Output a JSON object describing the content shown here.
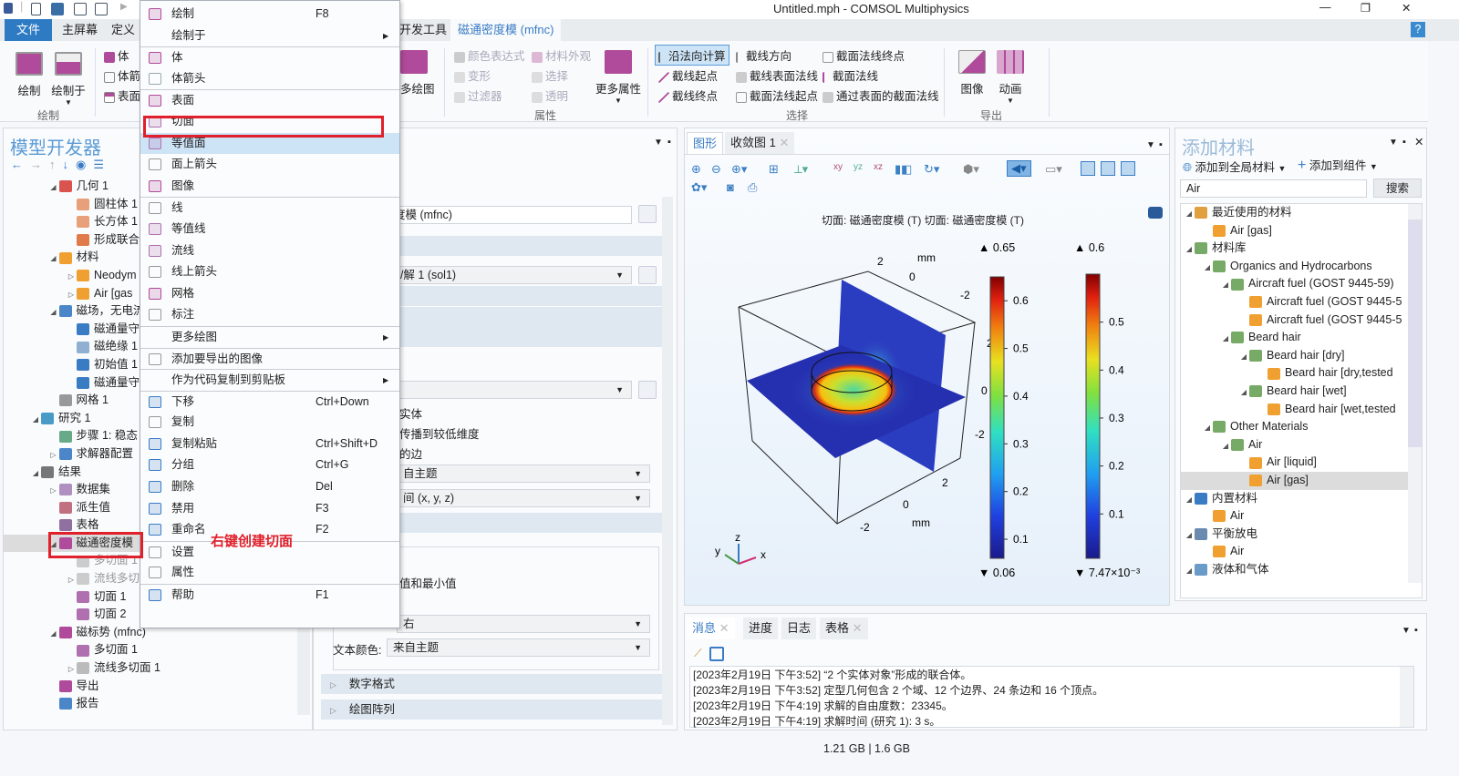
{
  "window": {
    "title": "Untitled.mph - COMSOL Multiphysics",
    "minimize": "—",
    "maximize": "❐",
    "close": "✕"
  },
  "ribbon": {
    "tabs": [
      "文件",
      "主屏幕",
      "定义",
      "开发工具",
      "磁通密度模 (mfnc)"
    ],
    "help": "?",
    "plot_group": {
      "label": "绘制",
      "plot": "绘制",
      "plot_in": "绘制于",
      "volume": "体",
      "volume_arrow": "体箭",
      "surface": "表面"
    },
    "more_plots": "多绘图",
    "attributes": {
      "label": "属性",
      "items": [
        "颜色表达式",
        "材料外观",
        "变形",
        "选择",
        "过滤器",
        "透明"
      ],
      "more": "更多属性"
    },
    "selection": {
      "label": "选择",
      "items": [
        "沿法向计算",
        "截线方向",
        "截面法线终点",
        "截线起点",
        "截线表面法线",
        "截面法线",
        "截线终点",
        "截面法线起点",
        "通过表面的截面法线"
      ]
    },
    "export": {
      "label": "导出",
      "image": "图像",
      "animation": "动画"
    }
  },
  "model_builder": {
    "title": "模型开发器",
    "tree": [
      {
        "label": "几何 1",
        "level": 1,
        "arrow": "open",
        "icon": "geometry-icon",
        "color": "#d9534f"
      },
      {
        "label": "圆柱体 1",
        "level": 2,
        "icon": "cylinder-icon",
        "color": "#e8a07a"
      },
      {
        "label": "长方体 1",
        "level": 2,
        "icon": "block-icon",
        "color": "#e8a07a"
      },
      {
        "label": "形成联合",
        "level": 2,
        "icon": "form-union-icon",
        "color": "#e07a4a"
      },
      {
        "label": "材料",
        "level": 1,
        "arrow": "open",
        "icon": "materials-icon",
        "color": "#f0a030"
      },
      {
        "label": "Neodym",
        "level": 2,
        "arrow": "closed",
        "icon": "material-icon",
        "color": "#f0a030"
      },
      {
        "label": "Air [gas",
        "level": 2,
        "arrow": "closed",
        "icon": "material-icon",
        "color": "#f0a030"
      },
      {
        "label": "磁场，无电流",
        "level": 1,
        "arrow": "open",
        "icon": "magnetic-field-icon",
        "color": "#4a86c8"
      },
      {
        "label": "磁通量守",
        "level": 2,
        "icon": "flux-conservation-icon",
        "color": "#3a7cc4"
      },
      {
        "label": "磁绝缘 1",
        "level": 2,
        "icon": "magnetic-insulation-icon",
        "color": "#8fb0d0"
      },
      {
        "label": "初始值 1",
        "level": 2,
        "icon": "initial-values-icon",
        "color": "#3a7cc4"
      },
      {
        "label": "磁通量守",
        "level": 2,
        "icon": "flux-conservation-icon",
        "color": "#3a7cc4"
      },
      {
        "label": "网格 1",
        "level": 1,
        "icon": "mesh-icon",
        "color": "#999"
      },
      {
        "label": "研究 1",
        "level": 0,
        "arrow": "open",
        "icon": "study-icon",
        "color": "#4a9ac8"
      },
      {
        "label": "步骤 1: 稳态",
        "level": 1,
        "icon": "step-icon",
        "color": "#6a8"
      },
      {
        "label": "求解器配置",
        "level": 1,
        "arrow": "closed",
        "icon": "solver-icon",
        "color": "#4a86c8"
      },
      {
        "label": "结果",
        "level": 0,
        "arrow": "open",
        "icon": "results-icon",
        "color": "#777"
      },
      {
        "label": "数据集",
        "level": 1,
        "arrow": "closed",
        "icon": "datasets-icon",
        "color": "#b090c0"
      },
      {
        "label": "派生值",
        "level": 1,
        "icon": "derived-values-icon",
        "color": "#c07080"
      },
      {
        "label": "表格",
        "level": 1,
        "icon": "table-icon",
        "color": "#9070a0"
      },
      {
        "label": "磁通密度模",
        "level": 1,
        "arrow": "open",
        "icon": "plot-group-icon",
        "color": "#b04a9a",
        "state": "selected"
      },
      {
        "label": "多切面 1",
        "level": 2,
        "icon": "multislice-icon",
        "color": "#ccc",
        "state": "disabled"
      },
      {
        "label": "流线多切",
        "level": 2,
        "arrow": "closed",
        "icon": "streamline-multislice-icon",
        "color": "#ccc",
        "state": "disabled"
      },
      {
        "label": "切面 1",
        "level": 2,
        "icon": "slice-icon",
        "color": "#b070b0"
      },
      {
        "label": "切面 2",
        "level": 2,
        "icon": "slice-icon",
        "color": "#b070b0"
      },
      {
        "label": "磁标势 (mfnc)",
        "level": 1,
        "arrow": "open",
        "icon": "plot-group-icon",
        "color": "#b04a9a"
      },
      {
        "label": "多切面 1",
        "level": 2,
        "icon": "multislice-icon",
        "color": "#b070b0"
      },
      {
        "label": "流线多切面 1",
        "level": 2,
        "arrow": "closed",
        "icon": "streamline-multislice-icon",
        "color": "#bbb"
      },
      {
        "label": "导出",
        "level": 1,
        "icon": "export-icon",
        "color": "#b04a9a"
      },
      {
        "label": "报告",
        "level": 1,
        "icon": "report-icon",
        "color": "#4a86c8"
      }
    ]
  },
  "context_menu": [
    {
      "label": "绘制",
      "shortcut": "F8",
      "icon": "plot-icon",
      "color": "#b04a9a"
    },
    {
      "label": "绘制于",
      "submenu": true
    },
    {
      "label": "体",
      "icon": "volume-icon",
      "color": "#b04a9a",
      "sep": true
    },
    {
      "label": "体箭头",
      "icon": "volume-arrow-icon",
      "color": "#9aa"
    },
    {
      "label": "表面",
      "icon": "surface-icon",
      "color": "#b04a9a",
      "sep": true
    },
    {
      "label": "切面",
      "icon": "slice-icon",
      "color": "#b070b0"
    },
    {
      "label": "等值面",
      "icon": "isosurface-icon",
      "color": "#b070b0",
      "highlight": true
    },
    {
      "label": "面上箭头",
      "icon": "arrow-surface-icon",
      "color": "#999"
    },
    {
      "label": "图像",
      "icon": "image-icon",
      "color": "#b04a9a"
    },
    {
      "label": "线",
      "icon": "line-icon",
      "color": "#999",
      "sep": true
    },
    {
      "label": "等值线",
      "icon": "contour-icon",
      "color": "#b070b0"
    },
    {
      "label": "流线",
      "icon": "streamline-icon",
      "color": "#b070b0"
    },
    {
      "label": "线上箭头",
      "icon": "arrow-line-icon",
      "color": "#999"
    },
    {
      "label": "网格",
      "icon": "mesh-icon",
      "color": "#b04a9a"
    },
    {
      "label": "标注",
      "icon": "annotation-icon",
      "color": "#999"
    },
    {
      "label": "更多绘图",
      "submenu": true,
      "sep": true
    },
    {
      "label": "添加要导出的图像",
      "icon": "add-image-export-icon",
      "color": "#999",
      "sep": true
    },
    {
      "label": "作为代码复制到剪贴板",
      "submenu": true,
      "sep": true
    },
    {
      "label": "下移",
      "shortcut": "Ctrl+Down",
      "icon": "move-down-icon",
      "color": "#3a7cc4",
      "sep": true
    },
    {
      "label": "复制",
      "icon": "copy-icon",
      "color": "#999"
    },
    {
      "label": "复制粘贴",
      "shortcut": "Ctrl+Shift+D",
      "icon": "duplicate-icon",
      "color": "#3a7cc4"
    },
    {
      "label": "分组",
      "shortcut": "Ctrl+G",
      "icon": "group-icon",
      "color": "#3a7cc4"
    },
    {
      "label": "删除",
      "shortcut": "Del",
      "icon": "delete-icon",
      "color": "#3a7cc4"
    },
    {
      "label": "禁用",
      "shortcut": "F3",
      "icon": "disable-icon",
      "color": "#3a7cc4"
    },
    {
      "label": "重命名",
      "shortcut": "F2",
      "icon": "rename-icon",
      "color": "#3a7cc4"
    },
    {
      "label": "设置",
      "icon": "settings-icon",
      "color": "#999",
      "sep": true
    },
    {
      "label": "属性",
      "icon": "properties-icon",
      "color": "#999"
    },
    {
      "label": "帮助",
      "shortcut": "F1",
      "icon": "help-icon",
      "color": "#3a7cc4",
      "sep": true
    }
  ],
  "annotation": "右键创建切面",
  "settings": {
    "label_value": "度模 (mfnc)",
    "dataset_value": "1/解 1 (sol1)",
    "solid": "实体",
    "propagate": "传播到较低维度",
    "edges": "的边",
    "color_theme": "自主题",
    "frame": "间  (x, y, z)",
    "max_min": "值和最小值",
    "position": "右",
    "text_color_label": "文本颜色:",
    "text_color": "来自主题",
    "number_format": "数字格式",
    "plot_array": "绘图阵列"
  },
  "graphics": {
    "tabs": [
      "图形",
      "收敛图 1"
    ],
    "plot_title": "切面: 磁通密度模 (T)  切面: 磁通密度模 (T)",
    "axis_unit": "mm",
    "axis_ticks": {
      "x": [
        "-2",
        "0",
        "2"
      ],
      "y": [
        "2",
        "0",
        "-2"
      ],
      "z": [
        "2",
        "0",
        "-2"
      ]
    },
    "triad": {
      "x": "x",
      "y": "y",
      "z": "z"
    },
    "colorbars": [
      {
        "max_label": "▲ 0.65",
        "min_label": "▼ 0.06",
        "min": 0.06,
        "max": 0.65,
        "ticks": [
          "0.1",
          "0.2",
          "0.3",
          "0.4",
          "0.5",
          "0.6"
        ]
      },
      {
        "max_label": "▲ 0.6",
        "min_label": "▼ 7.47×10⁻³",
        "min": 0.00747,
        "max": 0.6,
        "ticks": [
          "0.1",
          "0.2",
          "0.3",
          "0.4",
          "0.5"
        ]
      }
    ],
    "colormap": "rainbow"
  },
  "materials": {
    "title": "添加材料",
    "add_global": "添加到全局材料",
    "add_component": "添加到组件",
    "search_value": "Air",
    "search_button": "搜索",
    "tree": [
      {
        "label": "最近使用的材料",
        "level": 0,
        "arrow": "open",
        "icon": "recent-materials-icon",
        "color": "#e0a040"
      },
      {
        "label": "Air [gas]",
        "level": 1,
        "icon": "material-icon",
        "color": "#f0a030"
      },
      {
        "label": "材料库",
        "level": 0,
        "arrow": "open",
        "icon": "library-icon",
        "color": "#7a6"
      },
      {
        "label": "Organics and Hydrocarbons",
        "level": 1,
        "arrow": "open",
        "icon": "library-icon",
        "color": "#7a6"
      },
      {
        "label": "Aircraft fuel (GOST 9445-59)",
        "level": 2,
        "arrow": "open",
        "icon": "library-icon",
        "color": "#7a6"
      },
      {
        "label": "Aircraft fuel (GOST 9445-5",
        "level": 3,
        "icon": "material-icon",
        "color": "#f0a030"
      },
      {
        "label": "Aircraft fuel (GOST 9445-5",
        "level": 3,
        "icon": "material-icon",
        "color": "#f0a030"
      },
      {
        "label": "Beard hair",
        "level": 2,
        "arrow": "open",
        "icon": "library-icon",
        "color": "#7a6"
      },
      {
        "label": "Beard hair [dry]",
        "level": 3,
        "arrow": "open",
        "icon": "library-icon",
        "color": "#7a6"
      },
      {
        "label": "Beard hair [dry,tested",
        "level": 4,
        "icon": "material-icon",
        "color": "#f0a030"
      },
      {
        "label": "Beard hair [wet]",
        "level": 3,
        "arrow": "open",
        "icon": "library-icon",
        "color": "#7a6"
      },
      {
        "label": "Beard hair [wet,tested",
        "level": 4,
        "icon": "material-icon",
        "color": "#f0a030"
      },
      {
        "label": "Other Materials",
        "level": 1,
        "arrow": "open",
        "icon": "library-icon",
        "color": "#7a6"
      },
      {
        "label": "Air",
        "level": 2,
        "arrow": "open",
        "icon": "library-icon",
        "color": "#7a6"
      },
      {
        "label": "Air [liquid]",
        "level": 3,
        "icon": "material-icon",
        "color": "#f0a030"
      },
      {
        "label": "Air [gas]",
        "level": 3,
        "icon": "material-icon",
        "color": "#f0a030",
        "state": "selected"
      },
      {
        "label": "内置材料",
        "level": 0,
        "arrow": "open",
        "icon": "builtin-icon",
        "color": "#3a7cc4"
      },
      {
        "label": "Air",
        "level": 1,
        "icon": "material-icon",
        "color": "#f0a030"
      },
      {
        "label": "平衡放电",
        "level": 0,
        "arrow": "open",
        "icon": "discharge-icon",
        "color": "#6a8ab0"
      },
      {
        "label": "Air",
        "level": 1,
        "icon": "material-icon",
        "color": "#f0a030"
      },
      {
        "label": "液体和气体",
        "level": 0,
        "arrow": "open",
        "icon": "liquids-gases-icon",
        "color": "#6a9ac8"
      }
    ]
  },
  "messages": {
    "tabs": [
      "消息",
      "进度",
      "日志",
      "表格"
    ],
    "lines": [
      "[2023年2月19日 下午3:52] “2 个实体对象”形成的联合体。",
      "[2023年2月19日 下午3:52] 定型几何包含 2 个域、12 个边界、24 条边和 16 个顶点。",
      "[2023年2月19日 下午4:19] 求解的自由度数：23345。",
      "[2023年2月19日 下午4:19] 求解时间 (研究 1): 3 s。"
    ]
  },
  "status": {
    "memory": "1.21 GB | 1.6 GB"
  },
  "colors": {
    "accent": "#3a7cc4",
    "highlight_box": "#e0202a",
    "plot_purple": "#b04a9a"
  }
}
